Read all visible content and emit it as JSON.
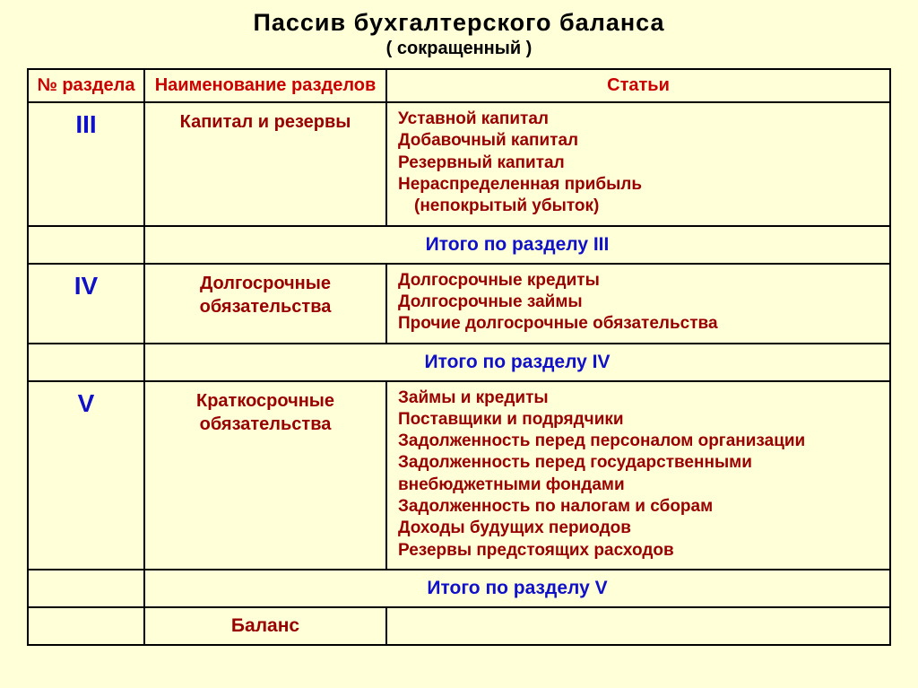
{
  "title": "Пассив  бухгалтерского  баланса",
  "subtitle": "( сокращенный )",
  "headers": {
    "num": "№ раздела",
    "name": "Наименование разделов",
    "items": "Статьи"
  },
  "sections": [
    {
      "num": "III",
      "name": "Капитал и резервы",
      "items": [
        "Уставной капитал",
        "Добавочный капитал",
        "Резервный капитал",
        "Нераспределенная прибыль",
        "  (непокрытый убыток)"
      ],
      "total": "Итого по разделу III"
    },
    {
      "num": "IV",
      "name": "Долгосрочные обязательства",
      "items": [
        "Долгосрочные кредиты",
        "Долгосрочные займы",
        "Прочие долгосрочные обязательства"
      ],
      "total": "Итого по разделу IV"
    },
    {
      "num": "V",
      "name": "Краткосрочные обязательства",
      "items": [
        "Займы и кредиты",
        "Поставщики и подрядчики",
        "Задолженность перед персоналом организации",
        "Задолженность перед государственными внебюджетными фондами",
        "Задолженность по налогам и сборам",
        "Доходы будущих периодов",
        "Резервы предстоящих расходов"
      ],
      "total": "Итого по разделу V"
    }
  ],
  "balance_label": "Баланс",
  "colors": {
    "background": "#ffffd8",
    "red": "#cb0000",
    "blue": "#1010c8",
    "darkred": "#990000",
    "border": "#000000"
  },
  "fonts": {
    "title_size": 27,
    "subtitle_size": 20,
    "header_size": 20,
    "section_num_size": 28,
    "section_name_size": 20,
    "item_size": 19,
    "total_size": 21
  }
}
